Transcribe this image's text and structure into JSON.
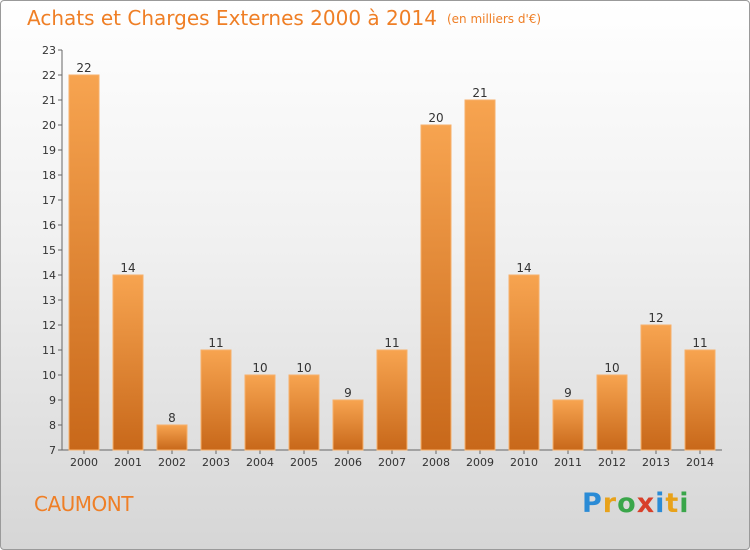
{
  "header": {
    "title": "Achats et Charges Externes 2000 à 2014",
    "unit": "(en milliers d'€)"
  },
  "commune": "CAUMONT",
  "logo": {
    "text": "Proxiti",
    "letters": [
      {
        "ch": "P",
        "color": "#2a8bd6"
      },
      {
        "ch": "r",
        "color": "#e8a21a"
      },
      {
        "ch": "o",
        "color": "#3aa64a"
      },
      {
        "ch": "x",
        "color": "#d8402a"
      },
      {
        "ch": "i",
        "color": "#2a8bd6"
      },
      {
        "ch": "t",
        "color": "#e8a21a"
      },
      {
        "ch": "i",
        "color": "#3aa64a"
      }
    ]
  },
  "chart_data": {
    "type": "bar",
    "categories": [
      "2000",
      "2001",
      "2002",
      "2003",
      "2004",
      "2005",
      "2006",
      "2007",
      "2008",
      "2009",
      "2010",
      "2011",
      "2012",
      "2013",
      "2014"
    ],
    "values": [
      22,
      14,
      8,
      11,
      10,
      10,
      9,
      11,
      20,
      21,
      14,
      9,
      10,
      12,
      11
    ],
    "title": "Achats et Charges Externes 2000 à 2014",
    "xlabel": "",
    "ylabel": "",
    "ylim": [
      7,
      23
    ],
    "yticks": [
      7,
      8,
      9,
      10,
      11,
      12,
      13,
      14,
      15,
      16,
      17,
      18,
      19,
      20,
      21,
      22,
      23
    ],
    "grid": false,
    "bar_color": "#f0892e"
  }
}
